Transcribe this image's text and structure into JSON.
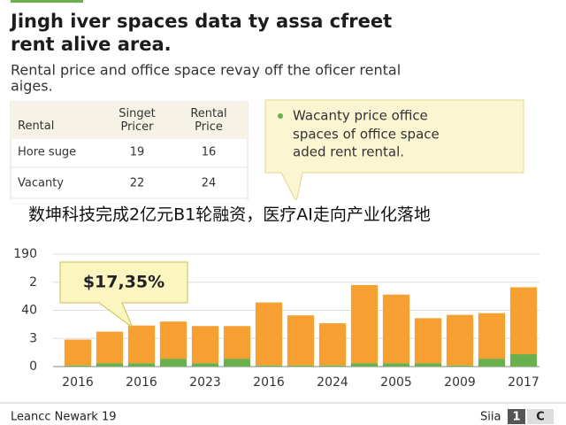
{
  "header": {
    "title": [
      "Jingh iver spaces data ty assa cfreet",
      "rent alive area."
    ],
    "subtitle": [
      "Rental price and office space revay off the oficer rental",
      "aiges."
    ]
  },
  "table": {
    "columns": [
      "Rental",
      "Singet\nPricer",
      "Rental\nPrice"
    ],
    "rows": [
      [
        "Hore suge",
        "19",
        "16"
      ],
      [
        "Vacanty",
        "22",
        "24"
      ]
    ]
  },
  "callout": [
    "Wacanty price office",
    "spaces of office space",
    "aded rent rental."
  ],
  "caption": "数坤科技完成2亿元B1轮融资，医疗AI走向产业化落地",
  "chart_data": {
    "type": "bar",
    "stacked": true,
    "annotation": "$17,35%",
    "categories": [
      "2016",
      null,
      "2016",
      null,
      "2023",
      null,
      "2016",
      null,
      "2024",
      null,
      "2005",
      null,
      "2009",
      null,
      "2017"
    ],
    "series": [
      {
        "name": "green",
        "color": "#6ab04c",
        "values": [
          2,
          6,
          6,
          14,
          6,
          14,
          2,
          2,
          2,
          6,
          6,
          6,
          2,
          14,
          22
        ]
      },
      {
        "name": "orange",
        "color": "#f5a030",
        "values": [
          46,
          56,
          67,
          66,
          66,
          58,
          112,
          89,
          75,
          139,
          122,
          80,
          90,
          81,
          119
        ]
      }
    ],
    "ylim": [
      0,
      200
    ],
    "yticks": [
      0,
      {
        "value": 50,
        "label": "3"
      },
      {
        "value": 100,
        "label": "40"
      },
      {
        "value": 150,
        "label": "2"
      },
      {
        "value": 200,
        "label": "190"
      }
    ],
    "grid": true
  },
  "footer": {
    "left": "Leancc Newark 19",
    "right": "Siia",
    "badge": [
      "1",
      "C"
    ]
  }
}
